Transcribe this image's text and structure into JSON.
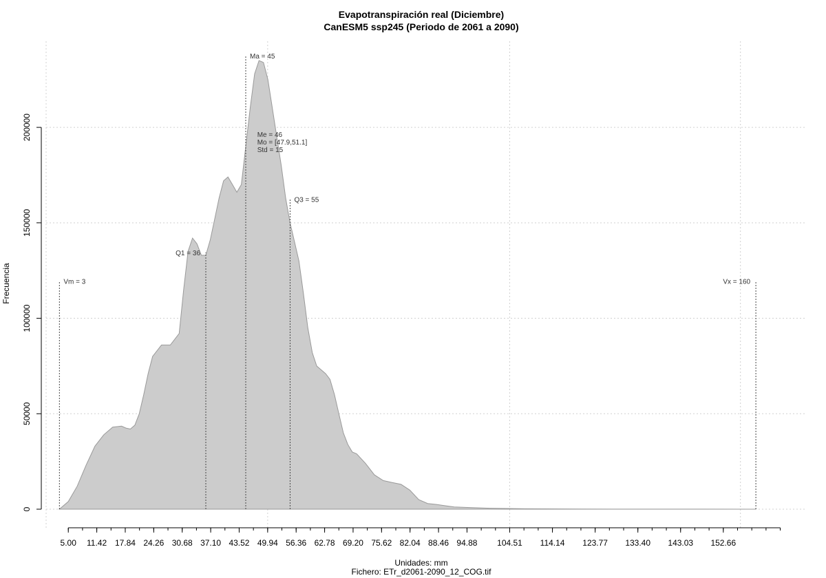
{
  "chart_data": {
    "type": "area",
    "title": "Evapotranspiración real (Diciembre)",
    "subtitle": "CanESM5 ssp245 (Periodo de 2061 a 2090)",
    "xlabel": "Unidades: mm",
    "ylabel": "Frecuencia",
    "caption": "Fichero: ETr_d2061-2090_12_COG.tif",
    "xlim": [
      0,
      171
    ],
    "ylim": [
      0,
      235000
    ],
    "x_ticks": [
      5.0,
      11.42,
      17.84,
      24.26,
      30.68,
      37.1,
      43.52,
      49.94,
      56.36,
      62.78,
      69.2,
      75.62,
      82.04,
      88.46,
      94.88,
      104.51,
      114.14,
      123.77,
      133.4,
      143.03,
      152.66
    ],
    "x_tick_labels": [
      "5.00",
      "11.42",
      "17.84",
      "24.26",
      "30.68",
      "37.10",
      "43.52",
      "49.94",
      "56.36",
      "62.78",
      "69.20",
      "75.62",
      "82.04",
      "88.46",
      "94.88",
      "104.51",
      "114.14",
      "123.77",
      "133.40",
      "143.03",
      "152.66"
    ],
    "x_minor_step": 3.21,
    "x_minor_range": [
      5.0,
      165.5
    ],
    "y_ticks": [
      0,
      50000,
      100000,
      150000,
      200000
    ],
    "y_tick_labels": [
      "0",
      "50000",
      "100000",
      "150000",
      "200000"
    ],
    "grid": true,
    "grid_x": [
      0,
      49.94,
      104.51,
      156.52
    ],
    "fill_color": "#cccccc",
    "line_color": "#999999",
    "x": [
      3,
      5,
      7,
      9,
      11,
      13,
      15,
      17,
      18,
      19,
      20,
      21,
      22,
      23,
      24,
      26,
      28,
      30,
      31,
      32,
      33,
      34,
      35,
      36,
      37,
      38,
      39,
      40,
      41,
      42,
      43,
      44,
      45,
      46,
      47,
      48,
      49,
      50,
      51,
      52,
      53,
      54,
      55,
      56,
      57,
      58,
      59,
      60,
      61,
      62,
      63,
      64,
      65,
      66,
      67,
      68,
      69,
      70,
      72,
      74,
      76,
      78,
      80,
      82,
      84,
      86,
      88,
      90,
      92,
      95,
      100,
      108,
      120,
      140,
      160
    ],
    "y": [
      0,
      4000,
      12000,
      23000,
      33000,
      39000,
      43000,
      43500,
      42500,
      42000,
      44000,
      50000,
      60000,
      71000,
      80000,
      86000,
      86000,
      92000,
      115000,
      135000,
      142000,
      139000,
      133000,
      133000,
      141000,
      152000,
      163000,
      172000,
      174000,
      170000,
      166000,
      170000,
      190000,
      210000,
      228000,
      235000,
      234000,
      225000,
      210000,
      195000,
      180000,
      163000,
      150000,
      140000,
      130000,
      113000,
      95000,
      82000,
      75000,
      73000,
      71000,
      68000,
      60000,
      50000,
      40000,
      34000,
      30000,
      29000,
      24000,
      18000,
      15000,
      14000,
      13000,
      10000,
      5000,
      3000,
      2500,
      1800,
      1200,
      900,
      500,
      200,
      80,
      20,
      0
    ],
    "annotations": [
      {
        "label": "Vm = 3",
        "x": 3,
        "y": 118000
      },
      {
        "label": "Q1 = 36",
        "x": 36,
        "y": 133000
      },
      {
        "label": "Ma = 45",
        "x": 45,
        "y": 236000
      },
      {
        "label": "Q3 = 55",
        "x": 55,
        "y": 161000
      },
      {
        "label": "Vx = 160",
        "x": 160,
        "y": 118000
      }
    ],
    "stats_block": {
      "lines": [
        "Me = 46",
        "Mo = [47.9,51.1]",
        "Std = 15"
      ],
      "x": 47.9,
      "y": 195000
    }
  }
}
